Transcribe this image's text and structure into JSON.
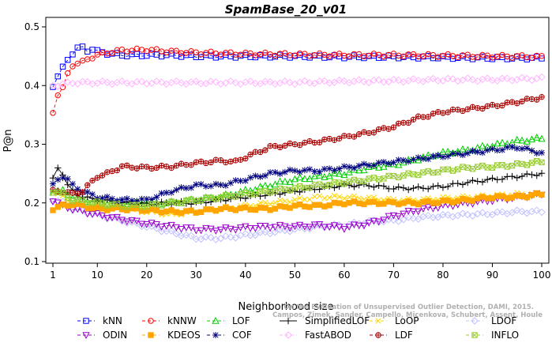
{
  "chart_data": {
    "type": "line",
    "title": "SpamBase_20_v01",
    "xlabel": "Neighborhood size",
    "ylabel": "P@n",
    "xlim": [
      1,
      100
    ],
    "ylim": [
      0.1,
      0.5
    ],
    "xticks": [
      1,
      10,
      20,
      30,
      40,
      50,
      60,
      70,
      80,
      90,
      100
    ],
    "yticks": [
      0.1,
      0.2,
      0.3,
      0.4,
      0.5
    ],
    "grid": false,
    "legend_position": "bottom",
    "credit_lines": [
      "Campos, Zimek, Sander, Campello, Micenkova, Schubert, Assent, Houle",
      "On the Evaluation of Unsupervised Outlier Detection, DAMI, 2015."
    ],
    "series": [
      {
        "name": "kNN",
        "color": "#0000ff",
        "marker": "square",
        "dash": "dash",
        "points": [
          [
            1,
            0.4
          ],
          [
            2,
            0.415
          ],
          [
            3,
            0.43
          ],
          [
            4,
            0.445
          ],
          [
            5,
            0.455
          ],
          [
            6,
            0.463
          ],
          [
            7,
            0.465
          ],
          [
            8,
            0.46
          ],
          [
            9,
            0.462
          ],
          [
            10,
            0.458
          ],
          [
            12,
            0.455
          ],
          [
            15,
            0.452
          ],
          [
            20,
            0.452
          ],
          [
            25,
            0.452
          ],
          [
            30,
            0.45
          ],
          [
            40,
            0.45
          ],
          [
            50,
            0.45
          ],
          [
            60,
            0.449
          ],
          [
            70,
            0.449
          ],
          [
            80,
            0.448
          ],
          [
            90,
            0.447
          ],
          [
            100,
            0.447
          ]
        ]
      },
      {
        "name": "kNNW",
        "color": "#ff0000",
        "marker": "circle",
        "dash": "dash",
        "points": [
          [
            1,
            0.355
          ],
          [
            2,
            0.385
          ],
          [
            3,
            0.395
          ],
          [
            4,
            0.42
          ],
          [
            5,
            0.435
          ],
          [
            6,
            0.438
          ],
          [
            7,
            0.44
          ],
          [
            8,
            0.445
          ],
          [
            10,
            0.452
          ],
          [
            12,
            0.456
          ],
          [
            15,
            0.46
          ],
          [
            20,
            0.461
          ],
          [
            25,
            0.458
          ],
          [
            30,
            0.456
          ],
          [
            40,
            0.454
          ],
          [
            50,
            0.453
          ],
          [
            60,
            0.452
          ],
          [
            70,
            0.452
          ],
          [
            80,
            0.451
          ],
          [
            90,
            0.45
          ],
          [
            100,
            0.449
          ]
        ]
      },
      {
        "name": "LOF",
        "color": "#00cc00",
        "marker": "triangle-up",
        "dash": "dash",
        "points": [
          [
            1,
            0.22
          ],
          [
            3,
            0.22
          ],
          [
            5,
            0.21
          ],
          [
            10,
            0.2
          ],
          [
            15,
            0.2
          ],
          [
            20,
            0.2
          ],
          [
            25,
            0.2
          ],
          [
            30,
            0.205
          ],
          [
            35,
            0.21
          ],
          [
            40,
            0.22
          ],
          [
            45,
            0.23
          ],
          [
            50,
            0.24
          ],
          [
            55,
            0.245
          ],
          [
            60,
            0.25
          ],
          [
            65,
            0.26
          ],
          [
            70,
            0.265
          ],
          [
            75,
            0.275
          ],
          [
            80,
            0.285
          ],
          [
            85,
            0.29
          ],
          [
            90,
            0.298
          ],
          [
            95,
            0.305
          ],
          [
            100,
            0.31
          ]
        ]
      },
      {
        "name": "SimplifiedLOF",
        "color": "#000000",
        "marker": "plus",
        "dash": "solid",
        "points": [
          [
            1,
            0.24
          ],
          [
            2,
            0.26
          ],
          [
            3,
            0.25
          ],
          [
            4,
            0.23
          ],
          [
            5,
            0.22
          ],
          [
            7,
            0.21
          ],
          [
            10,
            0.205
          ],
          [
            15,
            0.2
          ],
          [
            20,
            0.198
          ],
          [
            25,
            0.2
          ],
          [
            30,
            0.2
          ],
          [
            35,
            0.205
          ],
          [
            40,
            0.21
          ],
          [
            45,
            0.215
          ],
          [
            50,
            0.22
          ],
          [
            55,
            0.225
          ],
          [
            60,
            0.23
          ],
          [
            65,
            0.23
          ],
          [
            70,
            0.225
          ],
          [
            75,
            0.225
          ],
          [
            80,
            0.228
          ],
          [
            85,
            0.235
          ],
          [
            90,
            0.24
          ],
          [
            95,
            0.245
          ],
          [
            100,
            0.25
          ]
        ]
      },
      {
        "name": "LoOP",
        "color": "#ffd700",
        "marker": "x",
        "dash": "dash",
        "points": [
          [
            1,
            0.22
          ],
          [
            3,
            0.21
          ],
          [
            5,
            0.2
          ],
          [
            10,
            0.195
          ],
          [
            15,
            0.19
          ],
          [
            20,
            0.185
          ],
          [
            25,
            0.18
          ],
          [
            30,
            0.185
          ],
          [
            35,
            0.19
          ],
          [
            40,
            0.195
          ],
          [
            45,
            0.2
          ],
          [
            50,
            0.205
          ],
          [
            55,
            0.21
          ],
          [
            60,
            0.21
          ],
          [
            65,
            0.208
          ],
          [
            70,
            0.205
          ],
          [
            75,
            0.205
          ],
          [
            80,
            0.208
          ],
          [
            85,
            0.21
          ],
          [
            90,
            0.212
          ],
          [
            95,
            0.215
          ],
          [
            100,
            0.215
          ]
        ]
      },
      {
        "name": "LDOF",
        "color": "#c0c0ff",
        "marker": "diamond",
        "dash": "dash",
        "points": [
          [
            1,
            0.205
          ],
          [
            3,
            0.2
          ],
          [
            5,
            0.19
          ],
          [
            10,
            0.18
          ],
          [
            15,
            0.17
          ],
          [
            20,
            0.16
          ],
          [
            25,
            0.15
          ],
          [
            30,
            0.14
          ],
          [
            35,
            0.14
          ],
          [
            40,
            0.145
          ],
          [
            45,
            0.15
          ],
          [
            50,
            0.155
          ],
          [
            55,
            0.16
          ],
          [
            60,
            0.162
          ],
          [
            65,
            0.168
          ],
          [
            70,
            0.17
          ],
          [
            75,
            0.175
          ],
          [
            80,
            0.178
          ],
          [
            85,
            0.18
          ],
          [
            90,
            0.182
          ],
          [
            95,
            0.185
          ],
          [
            100,
            0.185
          ]
        ]
      },
      {
        "name": "ODIN",
        "color": "#9900cc",
        "marker": "triangle-down",
        "dash": "dash",
        "points": [
          [
            1,
            0.205
          ],
          [
            3,
            0.195
          ],
          [
            5,
            0.19
          ],
          [
            10,
            0.18
          ],
          [
            15,
            0.172
          ],
          [
            20,
            0.165
          ],
          [
            25,
            0.16
          ],
          [
            30,
            0.155
          ],
          [
            35,
            0.155
          ],
          [
            40,
            0.158
          ],
          [
            45,
            0.16
          ],
          [
            50,
            0.16
          ],
          [
            55,
            0.162
          ],
          [
            60,
            0.158
          ],
          [
            65,
            0.165
          ],
          [
            70,
            0.178
          ],
          [
            75,
            0.188
          ],
          [
            80,
            0.195
          ],
          [
            85,
            0.2
          ],
          [
            90,
            0.205
          ],
          [
            95,
            0.21
          ],
          [
            100,
            0.215
          ]
        ]
      },
      {
        "name": "KDEOS",
        "color": "#ffa500",
        "marker": "square-filled",
        "dash": "dash",
        "points": [
          [
            1,
            0.19
          ],
          [
            3,
            0.195
          ],
          [
            5,
            0.198
          ],
          [
            10,
            0.19
          ],
          [
            15,
            0.19
          ],
          [
            20,
            0.188
          ],
          [
            25,
            0.185
          ],
          [
            30,
            0.185
          ],
          [
            35,
            0.19
          ],
          [
            40,
            0.19
          ],
          [
            45,
            0.19
          ],
          [
            50,
            0.195
          ],
          [
            55,
            0.195
          ],
          [
            60,
            0.2
          ],
          [
            65,
            0.2
          ],
          [
            70,
            0.2
          ],
          [
            75,
            0.2
          ],
          [
            80,
            0.202
          ],
          [
            85,
            0.205
          ],
          [
            90,
            0.21
          ],
          [
            95,
            0.21
          ],
          [
            100,
            0.215
          ]
        ]
      },
      {
        "name": "COF",
        "color": "#000080",
        "marker": "asterisk",
        "dash": "dash",
        "points": [
          [
            1,
            0.23
          ],
          [
            2,
            0.24
          ],
          [
            3,
            0.245
          ],
          [
            4,
            0.24
          ],
          [
            5,
            0.23
          ],
          [
            7,
            0.22
          ],
          [
            10,
            0.21
          ],
          [
            15,
            0.205
          ],
          [
            20,
            0.205
          ],
          [
            25,
            0.22
          ],
          [
            30,
            0.23
          ],
          [
            35,
            0.23
          ],
          [
            40,
            0.24
          ],
          [
            45,
            0.25
          ],
          [
            50,
            0.255
          ],
          [
            55,
            0.255
          ],
          [
            60,
            0.26
          ],
          [
            65,
            0.265
          ],
          [
            70,
            0.27
          ],
          [
            75,
            0.275
          ],
          [
            80,
            0.28
          ],
          [
            85,
            0.285
          ],
          [
            90,
            0.29
          ],
          [
            95,
            0.295
          ],
          [
            100,
            0.285
          ]
        ]
      },
      {
        "name": "FastABOD",
        "color": "#ffb6ff",
        "marker": "diamond",
        "dash": "dash",
        "points": [
          [
            1,
            0.4
          ],
          [
            3,
            0.402
          ],
          [
            5,
            0.405
          ],
          [
            10,
            0.405
          ],
          [
            15,
            0.405
          ],
          [
            20,
            0.405
          ],
          [
            30,
            0.405
          ],
          [
            40,
            0.405
          ],
          [
            50,
            0.405
          ],
          [
            60,
            0.407
          ],
          [
            70,
            0.408
          ],
          [
            80,
            0.41
          ],
          [
            90,
            0.41
          ],
          [
            100,
            0.412
          ]
        ]
      },
      {
        "name": "LDF",
        "color": "#aa0000",
        "marker": "circle-plus",
        "dash": "dash",
        "points": [
          [
            1,
            0.22
          ],
          [
            3,
            0.22
          ],
          [
            5,
            0.215
          ],
          [
            7,
            0.22
          ],
          [
            10,
            0.245
          ],
          [
            12,
            0.25
          ],
          [
            15,
            0.262
          ],
          [
            20,
            0.26
          ],
          [
            25,
            0.262
          ],
          [
            30,
            0.268
          ],
          [
            35,
            0.272
          ],
          [
            38,
            0.27
          ],
          [
            40,
            0.278
          ],
          [
            45,
            0.295
          ],
          [
            50,
            0.3
          ],
          [
            55,
            0.305
          ],
          [
            60,
            0.312
          ],
          [
            65,
            0.32
          ],
          [
            70,
            0.33
          ],
          [
            75,
            0.345
          ],
          [
            80,
            0.355
          ],
          [
            85,
            0.36
          ],
          [
            90,
            0.365
          ],
          [
            95,
            0.372
          ],
          [
            100,
            0.38
          ]
        ]
      },
      {
        "name": "INFLO",
        "color": "#99cc33",
        "marker": "x-square",
        "dash": "dash",
        "points": [
          [
            1,
            0.22
          ],
          [
            3,
            0.215
          ],
          [
            5,
            0.205
          ],
          [
            10,
            0.2
          ],
          [
            15,
            0.195
          ],
          [
            20,
            0.195
          ],
          [
            25,
            0.2
          ],
          [
            30,
            0.205
          ],
          [
            35,
            0.21
          ],
          [
            40,
            0.215
          ],
          [
            45,
            0.22
          ],
          [
            50,
            0.225
          ],
          [
            55,
            0.23
          ],
          [
            60,
            0.235
          ],
          [
            65,
            0.24
          ],
          [
            70,
            0.245
          ],
          [
            75,
            0.25
          ],
          [
            80,
            0.255
          ],
          [
            85,
            0.26
          ],
          [
            90,
            0.262
          ],
          [
            95,
            0.265
          ],
          [
            100,
            0.27
          ]
        ]
      }
    ],
    "legend_order": [
      [
        "kNN",
        "kNNW",
        "LOF",
        "SimplifiedLOF",
        "LoOP",
        "LDOF"
      ],
      [
        "ODIN",
        "KDEOS",
        "COF",
        "FastABOD",
        "LDF",
        "INFLO"
      ]
    ]
  }
}
